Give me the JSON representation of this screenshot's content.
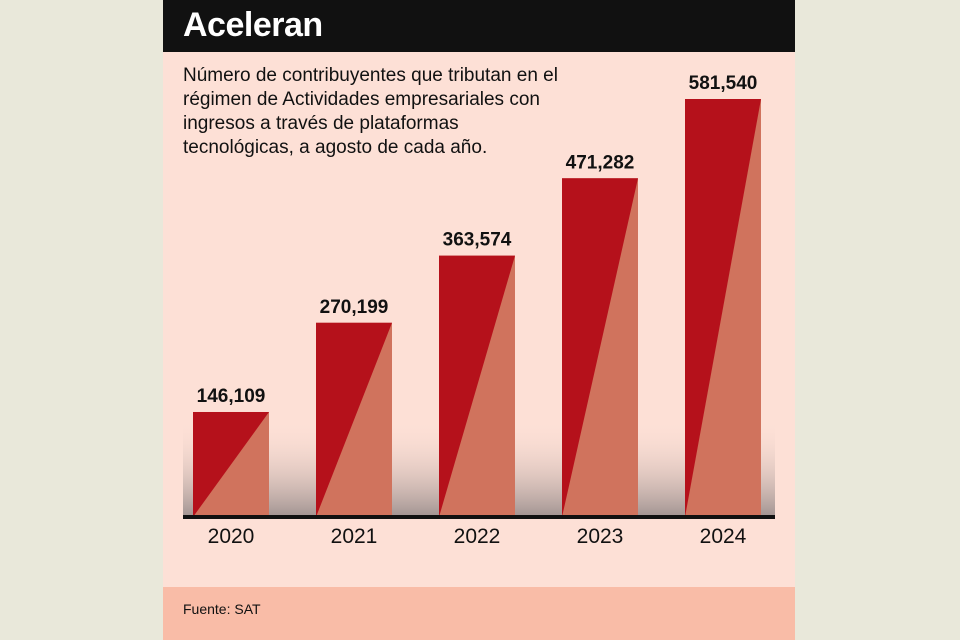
{
  "chart_data": {
    "type": "bar",
    "title": "Aceleran",
    "subtitle": "Número de contribuyentes que tributan en el régimen de Actividades empresariales con ingresos a través de plataformas tecnológicas, a agosto de cada año.",
    "categories": [
      "2020",
      "2021",
      "2022",
      "2023",
      "2024"
    ],
    "values": [
      146109,
      270199,
      363574,
      471282,
      581540
    ],
    "value_labels": [
      "146,109",
      "270,199",
      "363,574",
      "471,282",
      "581,540"
    ],
    "ylim": [
      0,
      581540
    ],
    "grid": false,
    "source": "Fuente: SAT",
    "colors": {
      "bar_dark": "#b5111b",
      "bar_light": "#d0735d",
      "background": "#fde0d6",
      "header": "#111111"
    }
  }
}
